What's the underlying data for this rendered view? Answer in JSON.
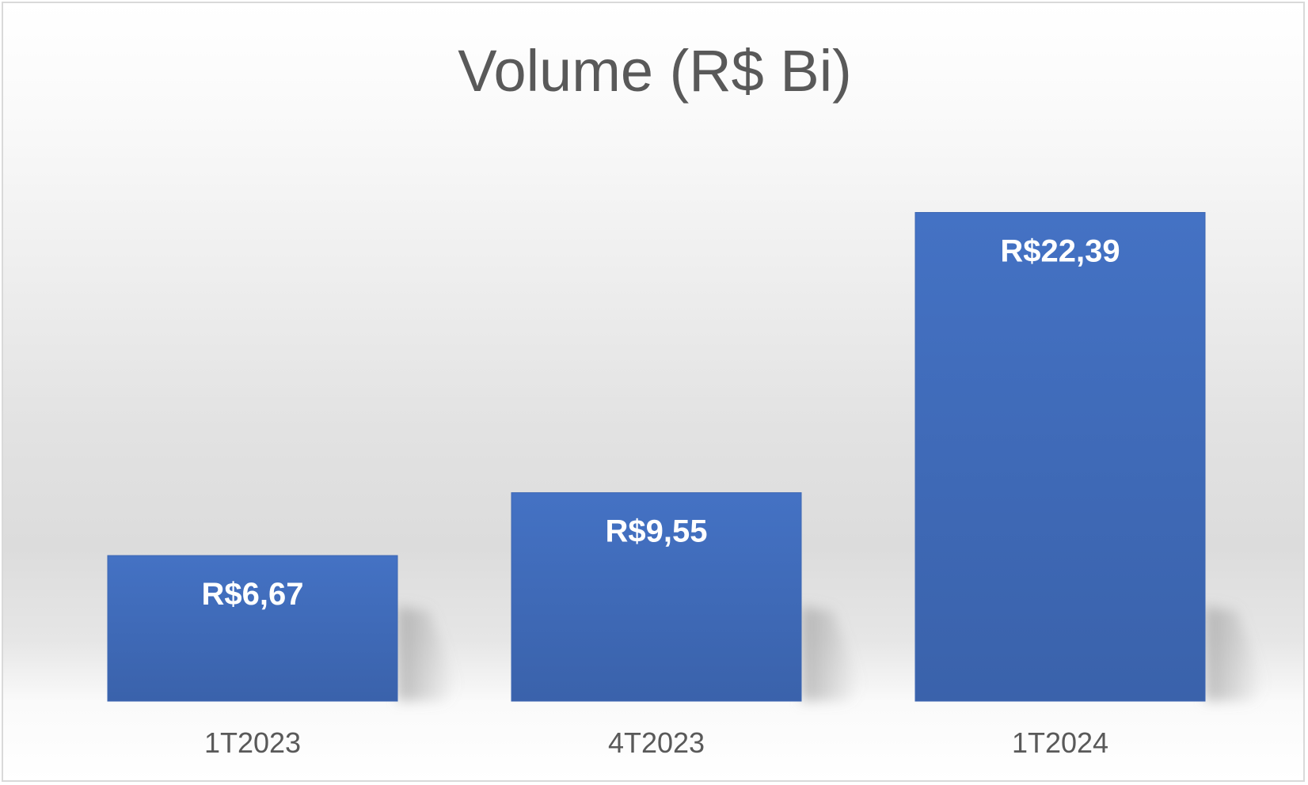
{
  "chart_data": {
    "type": "bar",
    "title": "Volume (R$ Bi)",
    "categories": [
      "1T2023",
      "4T2023",
      "1T2024"
    ],
    "values": [
      6.67,
      9.55,
      22.39
    ],
    "value_labels": [
      "R$6,67",
      "R$9,55",
      "R$22,39"
    ],
    "ylim": [
      0,
      25
    ],
    "grid": false,
    "legend": "none",
    "bar_color": "#4472C4",
    "bar_color_dark": "#3A62AB"
  }
}
